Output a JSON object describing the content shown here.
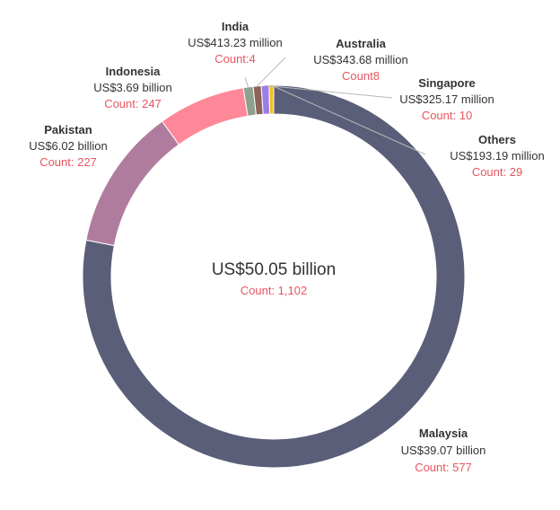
{
  "chart_data": {
    "type": "pie",
    "donut": true,
    "unit": "US$ million",
    "center": {
      "total_label": "US$50.05 billion",
      "count_label": "Count: 1,102"
    },
    "count_color": "#e8555f",
    "slices": [
      {
        "key": "malaysia",
        "name": "Malaysia",
        "value": 39070,
        "value_label": "US$39.07 billion",
        "count": 577,
        "count_label": "Count: 577",
        "color": "#5a5e78"
      },
      {
        "key": "pakistan",
        "name": "Pakistan",
        "value": 6020,
        "value_label": "US$6.02 billion",
        "count": 227,
        "count_label": "Count: 227",
        "color": "#b07c9e"
      },
      {
        "key": "indonesia",
        "name": "Indonesia",
        "value": 3690,
        "value_label": "US$3.69 billion",
        "count": 247,
        "count_label": "Count: 247",
        "color": "#ff8898"
      },
      {
        "key": "india",
        "name": "India",
        "value": 413.23,
        "value_label": "US$413.23 million",
        "count": 4,
        "count_label": "Count:4",
        "color": "#8fa08c"
      },
      {
        "key": "australia",
        "name": "Australia",
        "value": 343.68,
        "value_label": "US$343.68 million",
        "count": 8,
        "count_label": "Count8",
        "color": "#8c6358"
      },
      {
        "key": "singapore",
        "name": "Singapore",
        "value": 325.17,
        "value_label": "US$325.17 million",
        "count": 10,
        "count_label": "Count: 10",
        "color": "#9a7ee8"
      },
      {
        "key": "others",
        "name": "Others",
        "value": 193.19,
        "value_label": "US$193.19 million",
        "count": 29,
        "count_label": "Count: 29",
        "color": "#f0c020"
      }
    ]
  }
}
